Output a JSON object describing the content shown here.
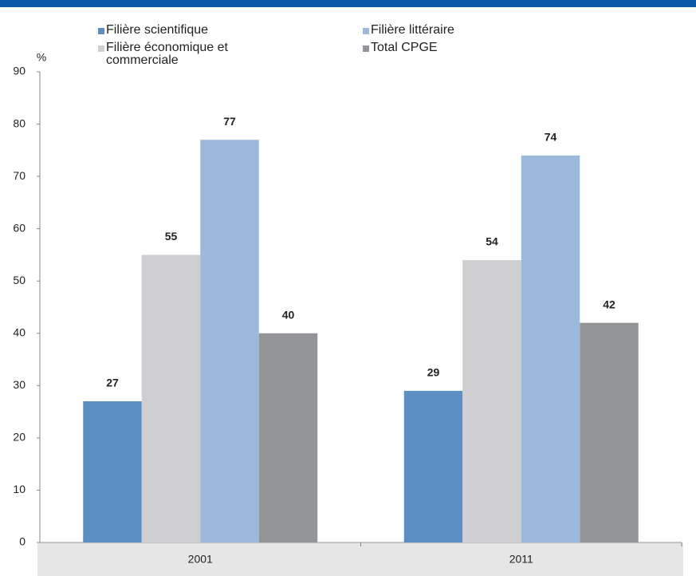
{
  "chart_data": {
    "type": "bar",
    "y_label": "%",
    "categories": [
      "2001",
      "2011"
    ],
    "series": [
      {
        "name": "Filière scientifique",
        "color": "#5b8fc4",
        "values": [
          27,
          29
        ]
      },
      {
        "name": "Filière économique et commerciale",
        "color": "#cfcfd1",
        "values": [
          55,
          54
        ]
      },
      {
        "name": "Filière littéraire",
        "color": "#9bbadb",
        "values": [
          77,
          74
        ]
      },
      {
        "name": "Total CPGE",
        "color": "#939598",
        "values": [
          40,
          42
        ]
      }
    ],
    "ylim": [
      0,
      90
    ],
    "yticks": [
      0,
      10,
      20,
      30,
      40,
      50,
      60,
      70,
      80,
      90
    ],
    "grid": false
  }
}
